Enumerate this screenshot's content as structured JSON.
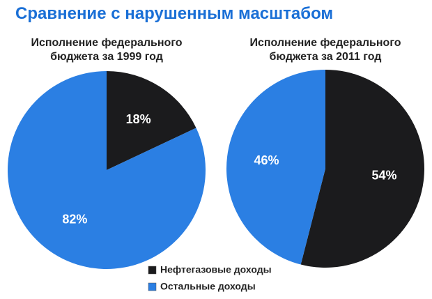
{
  "title": "Сравнение с нарушенным масштабом",
  "legend": {
    "categories": [
      "Нефтегазовые доходы",
      "Остальные доходы"
    ],
    "colors": [
      "#1b1b1d",
      "#2b7fe3"
    ]
  },
  "chart_data": [
    {
      "type": "pie",
      "title": "Исполнение федерального бюджета за 1999 год",
      "values": [
        18,
        82
      ],
      "value_labels": [
        "18%",
        "82%"
      ]
    },
    {
      "type": "pie",
      "title": "Исполнение федерального бюджета за 2011 год",
      "values": [
        54,
        46
      ],
      "value_labels": [
        "54%",
        "46%"
      ]
    }
  ]
}
